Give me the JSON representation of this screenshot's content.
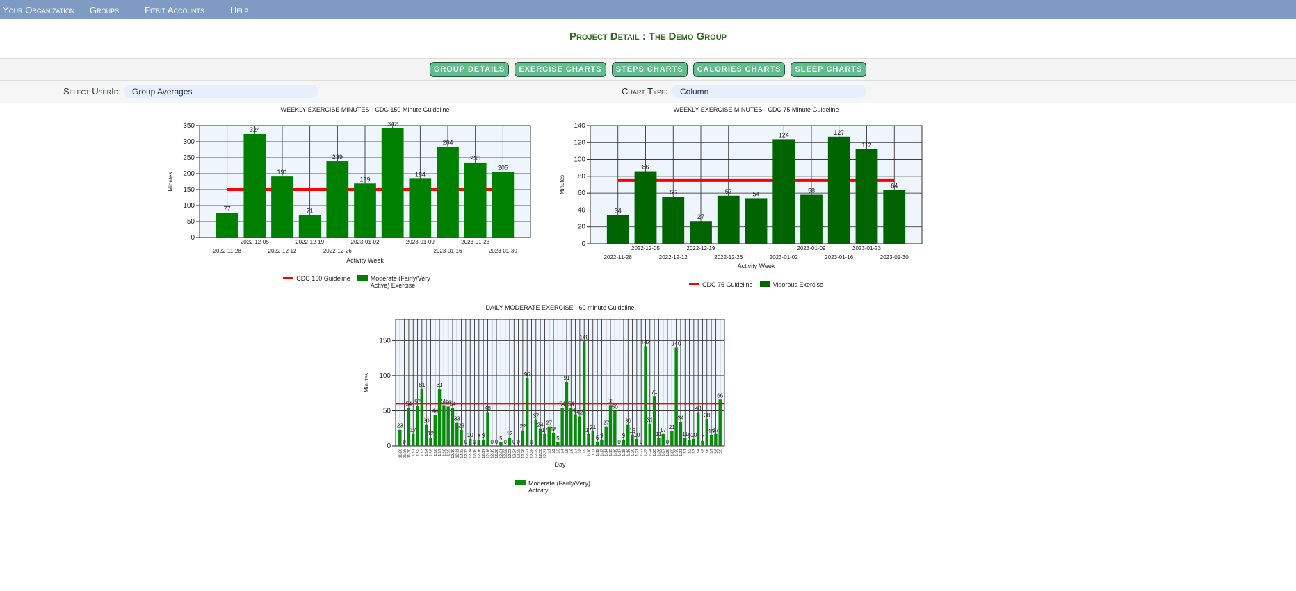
{
  "nav": [
    "Your Organization",
    "Groups",
    "Fitbit Accounts",
    "Help"
  ],
  "header": {
    "title": "Project Detail : The Demo Group"
  },
  "buttons": [
    "GROUP DETAILS",
    "EXERCISE CHARTS",
    "STEPS CHARTS",
    "CALORIES CHARTS",
    "SLEEP CHARTS"
  ],
  "filters": [
    {
      "label": "Select UserId:",
      "value": "Group Averages"
    },
    {
      "label": "Chart Type:",
      "value": "Column"
    }
  ],
  "chart_data": [
    {
      "type": "bar",
      "title": "WEEKLY EXERCISE MINUTES - CDC 150 Minute Guideline",
      "x_label": "Activity Week",
      "y_label": "Minutes",
      "categories": [
        "2022-11-28",
        "2022-12-05",
        "2022-12-12",
        "2022-12-19",
        "2022-12-26",
        "2023-01-02",
        null,
        "2023-01-09",
        "2023-01-16",
        "2023-01-23",
        "2023-01-30"
      ],
      "series": [
        {
          "name": "CDC 150 Guideline",
          "type": "line",
          "color": "#ff0000",
          "values": [
            150,
            150,
            150,
            150,
            150,
            150,
            150,
            150,
            150,
            150,
            150
          ]
        },
        {
          "name": "Moderate (Fairly/Very Active) Exercise",
          "type": "bar",
          "color": "#008000",
          "values": [
            77,
            324,
            191,
            71,
            239,
            169,
            342,
            184,
            284,
            235,
            205
          ]
        }
      ],
      "ylim": [
        0,
        350
      ],
      "yticks": [
        0,
        50,
        100,
        150,
        200,
        250,
        300,
        350
      ],
      "grid": true
    },
    {
      "type": "bar",
      "title": "WEEKLY EXERCISE MINUTES - CDC 75 Minute Guideline",
      "x_label": "Activity Week",
      "y_label": "Minutes",
      "categories": [
        "2022-11-28",
        "2022-12-05",
        "2022-12-12",
        "2022-12-19",
        "2022-12-26",
        null,
        "2023-01-02",
        "2023-01-09",
        "2023-01-16",
        "2023-01-23",
        "2023-01-30"
      ],
      "series": [
        {
          "name": "CDC 75 Guideline",
          "type": "line",
          "color": "#ff0000",
          "values": [
            75,
            75,
            75,
            75,
            75,
            75,
            75,
            75,
            75,
            75,
            75
          ]
        },
        {
          "name": "Vigorous Exercise",
          "type": "bar",
          "color": "#006400",
          "values": [
            34,
            86,
            56,
            27,
            57,
            54,
            124,
            58,
            127,
            112,
            64
          ]
        }
      ],
      "ylim": [
        0,
        140
      ],
      "yticks": [
        0,
        20,
        40,
        60,
        80,
        100,
        120,
        140
      ],
      "grid": true
    },
    {
      "type": "bar",
      "title": "DAILY MODERATE EXERCISE - 60 minute Guideline",
      "x_label": "Day",
      "y_label": "Minutes",
      "categories": [
        "11/28",
        "11/29",
        "11/30",
        "12/1",
        "12/2",
        "12/3",
        "12/4",
        "12/5",
        "12/6",
        "12/7",
        "12/8",
        "12/9",
        "12/10",
        "12/11",
        "12/12",
        "12/13",
        "12/14",
        "12/15",
        "12/16",
        "12/17",
        "12/18",
        "12/19",
        "12/20",
        "12/21",
        "12/22",
        "12/23",
        "12/24",
        "12/25",
        "12/26",
        "12/27",
        "12/28",
        "12/29",
        "12/30",
        "12/31",
        "1/1",
        "1/2",
        "1/3",
        "1/4",
        "1/5",
        "1/6",
        "1/7",
        "1/8",
        "1/9",
        "1/10",
        "1/11",
        "1/12",
        "1/13",
        "1/14",
        "1/15",
        "1/16",
        "1/17",
        "1/18",
        "1/19",
        "1/20",
        "1/21",
        "1/22",
        "1/23",
        "1/24",
        "1/25",
        "1/26",
        "1/27",
        "1/28",
        "1/29",
        "1/30",
        "1/31",
        "2/1",
        "2/2",
        "2/3",
        "2/4",
        "2/5",
        "2/6",
        "2/7",
        "2/8",
        "2/9"
      ],
      "series": [
        {
          "name": "Moderate (Fairly/Very) Activity",
          "type": "bar",
          "color": "#0a8a0a",
          "values": [
            23,
            0,
            54,
            17,
            57,
            81,
            30,
            12,
            44,
            81,
            58,
            56,
            54,
            33,
            23,
            0,
            10,
            0,
            8,
            9,
            48,
            0,
            0,
            5,
            0,
            12,
            0,
            0,
            22,
            96,
            0,
            37,
            24,
            17,
            27,
            18,
            5,
            54,
            91,
            54,
            45,
            42,
            149,
            17,
            21,
            6,
            9,
            27,
            58,
            50,
            0,
            9,
            30,
            16,
            10,
            0,
            142,
            31,
            71,
            11,
            17,
            0,
            21,
            140,
            34,
            11,
            9,
            10,
            48,
            7,
            38,
            15,
            17,
            66
          ]
        }
      ],
      "guideline": 60,
      "guideline_color": "#ff0000",
      "ylim": [
        0,
        180
      ],
      "yticks": [
        0,
        50,
        100,
        150
      ],
      "grid": true
    }
  ]
}
